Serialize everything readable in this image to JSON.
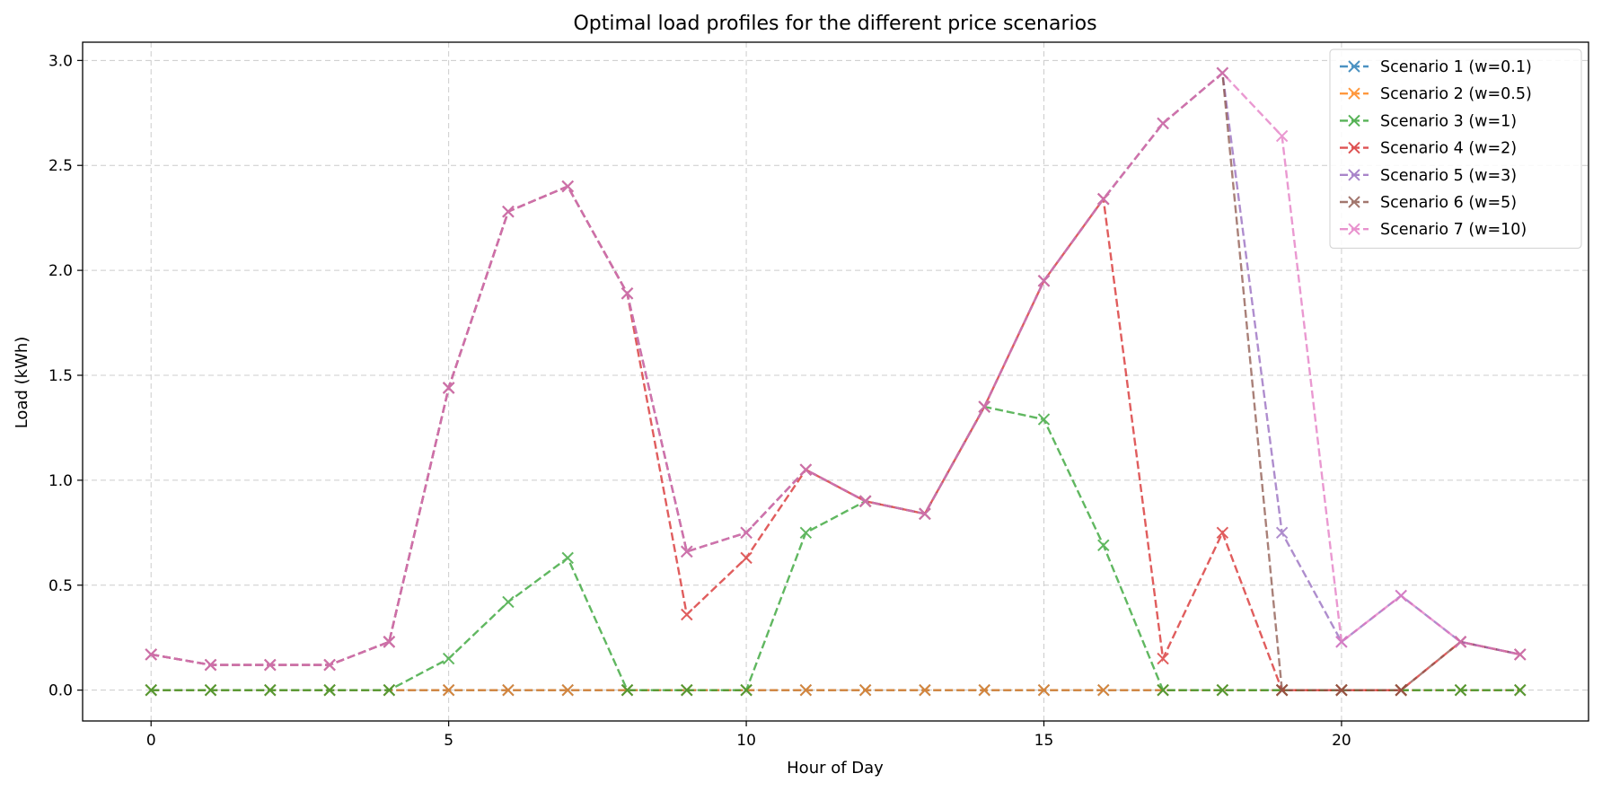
{
  "chart_data": {
    "type": "line",
    "title": "Optimal load profiles for the different price scenarios",
    "xlabel": "Hour of Day",
    "ylabel": "Load (kWh)",
    "xlim": [
      -1.15,
      24.15
    ],
    "ylim": [
      -0.147,
      3.087
    ],
    "xticks": [
      0,
      5,
      10,
      15,
      20
    ],
    "yticks": [
      0.0,
      0.5,
      1.0,
      1.5,
      2.0,
      2.5,
      3.0
    ],
    "ytick_labels": [
      "0.0",
      "0.5",
      "1.0",
      "1.5",
      "2.0",
      "2.5",
      "3.0"
    ],
    "grid": true,
    "legend_position": "top-right",
    "marker": "x",
    "line_style": "dashed",
    "x": [
      0,
      1,
      2,
      3,
      4,
      5,
      6,
      7,
      8,
      9,
      10,
      11,
      12,
      13,
      14,
      15,
      16,
      17,
      18,
      19,
      20,
      21,
      22,
      23
    ],
    "series": [
      {
        "name": "Scenario 1 (w=0.1)",
        "color": "#1f77b4",
        "values": [
          0,
          0,
          0,
          0,
          0,
          0,
          0,
          0,
          0,
          0,
          0,
          0,
          0,
          0,
          0,
          0,
          0,
          0,
          0,
          0,
          0,
          0,
          0,
          0
        ]
      },
      {
        "name": "Scenario 2 (w=0.5)",
        "color": "#ff7f0e",
        "values": [
          0,
          0,
          0,
          0,
          0,
          0,
          0,
          0,
          0,
          0,
          0,
          0,
          0,
          0,
          0,
          0,
          0,
          0,
          0,
          0,
          0,
          0,
          0,
          0
        ]
      },
      {
        "name": "Scenario 3 (w=1)",
        "color": "#2ca02c",
        "values": [
          0,
          0,
          0,
          0,
          0,
          0.15,
          0.42,
          0.63,
          0,
          0,
          0,
          0.75,
          0.9,
          0.84,
          1.35,
          1.29,
          0.69,
          0,
          0,
          0,
          0,
          0,
          0,
          0
        ]
      },
      {
        "name": "Scenario 4 (w=2)",
        "color": "#d62728",
        "values": [
          0.17,
          0.12,
          0.12,
          0.12,
          0.23,
          1.44,
          2.28,
          2.4,
          1.89,
          0.36,
          0.63,
          1.05,
          0.9,
          0.84,
          1.35,
          1.95,
          2.34,
          0.15,
          0.75,
          0,
          0,
          0,
          0.23,
          0.17
        ]
      },
      {
        "name": "Scenario 5 (w=3)",
        "color": "#9467bd",
        "values": [
          0.17,
          0.12,
          0.12,
          0.12,
          0.23,
          1.44,
          2.28,
          2.4,
          1.89,
          0.66,
          0.75,
          1.05,
          0.9,
          0.84,
          1.35,
          1.95,
          2.34,
          2.7,
          2.94,
          0.75,
          0.23,
          0.45,
          0.23,
          0.17
        ]
      },
      {
        "name": "Scenario 6 (w=5)",
        "color": "#8c564b",
        "values": [
          0.17,
          0.12,
          0.12,
          0.12,
          0.23,
          1.44,
          2.28,
          2.4,
          1.89,
          0.66,
          0.75,
          1.05,
          0.9,
          0.84,
          1.35,
          1.95,
          2.34,
          2.7,
          2.94,
          0,
          0,
          0,
          0.23,
          0.17
        ]
      },
      {
        "name": "Scenario 7 (w=10)",
        "color": "#e377c2",
        "values": [
          0.17,
          0.12,
          0.12,
          0.12,
          0.23,
          1.44,
          2.28,
          2.4,
          1.89,
          0.66,
          0.75,
          1.05,
          0.9,
          0.84,
          1.35,
          1.95,
          2.34,
          2.7,
          2.94,
          2.64,
          0.23,
          0.45,
          0.23,
          0.17
        ]
      }
    ]
  }
}
